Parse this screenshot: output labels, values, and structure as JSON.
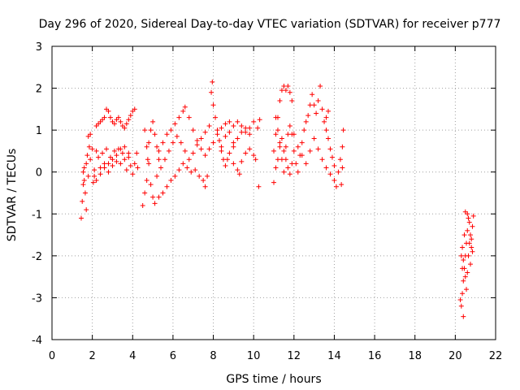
{
  "chart_data": {
    "type": "scatter",
    "title": "Day 296 of 2020, Sidereal Day-to-day VTEC variation (SDTVAR) for receiver p777",
    "xlabel": "GPS time / hours",
    "ylabel": "SDTVAR / TECUs",
    "xlim": [
      0,
      22
    ],
    "ylim": [
      -4,
      3
    ],
    "xticks": [
      "0",
      "2",
      "4",
      "6",
      "8",
      "10",
      "12",
      "14",
      "16",
      "18",
      "20",
      "22"
    ],
    "yticks": [
      "-4",
      "-3",
      "-2",
      "-1",
      "0",
      "1",
      "2",
      "3"
    ],
    "grid": true,
    "marker": "plus",
    "color": "#ff0000",
    "series": [
      {
        "points": [
          [
            1.45,
            -1.1
          ],
          [
            1.5,
            -0.7
          ],
          [
            1.55,
            -0.3
          ],
          [
            1.6,
            0.1
          ],
          [
            1.65,
            -0.5
          ],
          [
            1.7,
            -0.9
          ],
          [
            1.75,
            0.4
          ],
          [
            1.8,
            0.85
          ],
          [
            1.85,
            0.6
          ],
          [
            1.9,
            0.9
          ],
          [
            1.55,
            0.0
          ],
          [
            1.6,
            -0.2
          ],
          [
            1.7,
            0.2
          ],
          [
            1.8,
            -0.1
          ],
          [
            1.9,
            0.3
          ],
          [
            2.0,
            0.55
          ],
          [
            2.05,
            -0.25
          ],
          [
            2.1,
            0.05
          ],
          [
            2.2,
            0.5
          ],
          [
            2.3,
            0.35
          ],
          [
            2.4,
            0.1
          ],
          [
            2.5,
            0.45
          ],
          [
            2.6,
            0.2
          ],
          [
            2.7,
            0.55
          ],
          [
            2.8,
            0.0
          ],
          [
            2.9,
            0.35
          ],
          [
            3.0,
            0.15
          ],
          [
            3.1,
            0.5
          ],
          [
            3.2,
            0.25
          ],
          [
            3.3,
            0.55
          ],
          [
            3.4,
            0.2
          ],
          [
            3.5,
            0.45
          ],
          [
            3.6,
            0.3
          ],
          [
            3.7,
            0.05
          ],
          [
            3.8,
            0.35
          ],
          [
            3.9,
            0.15
          ],
          [
            4.0,
            -0.05
          ],
          [
            4.1,
            0.2
          ],
          [
            4.2,
            0.45
          ],
          [
            4.25,
            0.1
          ],
          [
            2.2,
            1.1
          ],
          [
            2.3,
            1.15
          ],
          [
            2.4,
            1.2
          ],
          [
            2.5,
            1.25
          ],
          [
            2.6,
            1.3
          ],
          [
            2.7,
            1.5
          ],
          [
            2.8,
            1.45
          ],
          [
            2.9,
            1.3
          ],
          [
            3.0,
            1.2
          ],
          [
            3.1,
            1.15
          ],
          [
            3.2,
            1.25
          ],
          [
            3.3,
            1.3
          ],
          [
            3.4,
            1.2
          ],
          [
            3.5,
            1.1
          ],
          [
            3.6,
            1.05
          ],
          [
            3.7,
            1.15
          ],
          [
            3.8,
            1.25
          ],
          [
            3.9,
            1.35
          ],
          [
            4.0,
            1.45
          ],
          [
            4.1,
            1.5
          ],
          [
            2.1,
            -0.1
          ],
          [
            2.2,
            -0.2
          ],
          [
            2.4,
            -0.05
          ],
          [
            2.6,
            0.1
          ],
          [
            2.8,
            0.2
          ],
          [
            3.0,
            0.3
          ],
          [
            3.2,
            0.4
          ],
          [
            3.4,
            0.55
          ],
          [
            3.6,
            0.6
          ],
          [
            3.8,
            0.45
          ],
          [
            4.5,
            -0.8
          ],
          [
            4.6,
            -0.5
          ],
          [
            4.7,
            -0.2
          ],
          [
            4.75,
            0.3
          ],
          [
            4.8,
            0.7
          ],
          [
            4.9,
            1.0
          ],
          [
            5.0,
            1.2
          ],
          [
            5.1,
            0.9
          ],
          [
            5.2,
            0.6
          ],
          [
            5.3,
            0.3
          ],
          [
            4.6,
            1.0
          ],
          [
            4.7,
            0.6
          ],
          [
            4.8,
            0.2
          ],
          [
            4.9,
            -0.3
          ],
          [
            5.0,
            -0.6
          ],
          [
            5.1,
            -0.75
          ],
          [
            5.3,
            -0.6
          ],
          [
            5.5,
            -0.5
          ],
          [
            5.7,
            -0.35
          ],
          [
            5.9,
            -0.2
          ],
          [
            6.1,
            -0.1
          ],
          [
            6.3,
            0.05
          ],
          [
            6.5,
            0.2
          ],
          [
            6.7,
            0.1
          ],
          [
            6.9,
            0.0
          ],
          [
            7.1,
            0.05
          ],
          [
            7.3,
            -0.1
          ],
          [
            7.5,
            -0.2
          ],
          [
            7.6,
            -0.35
          ],
          [
            7.7,
            -0.1
          ],
          [
            5.3,
            0.5
          ],
          [
            5.5,
            0.7
          ],
          [
            5.7,
            0.9
          ],
          [
            5.9,
            1.0
          ],
          [
            6.1,
            1.15
          ],
          [
            6.3,
            1.3
          ],
          [
            6.5,
            1.45
          ],
          [
            6.6,
            1.55
          ],
          [
            6.8,
            1.3
          ],
          [
            7.0,
            1.0
          ],
          [
            7.2,
            0.75
          ],
          [
            7.4,
            0.55
          ],
          [
            7.6,
            0.4
          ],
          [
            7.8,
            0.55
          ],
          [
            8.0,
            0.7
          ],
          [
            8.2,
            0.9
          ],
          [
            8.4,
            1.05
          ],
          [
            8.6,
            1.15
          ],
          [
            8.8,
            0.95
          ],
          [
            9.0,
            0.7
          ],
          [
            5.2,
            -0.1
          ],
          [
            5.4,
            0.1
          ],
          [
            5.6,
            0.3
          ],
          [
            5.8,
            0.5
          ],
          [
            6.0,
            0.7
          ],
          [
            6.2,
            0.85
          ],
          [
            6.4,
            0.7
          ],
          [
            6.6,
            0.5
          ],
          [
            6.8,
            0.3
          ],
          [
            7.0,
            0.45
          ],
          [
            7.2,
            0.65
          ],
          [
            7.4,
            0.8
          ],
          [
            7.6,
            0.95
          ],
          [
            7.8,
            1.1
          ],
          [
            7.9,
            1.9
          ],
          [
            7.95,
            2.15
          ],
          [
            8.0,
            1.6
          ],
          [
            8.1,
            1.3
          ],
          [
            8.2,
            1.0
          ],
          [
            8.3,
            0.75
          ],
          [
            8.4,
            0.5
          ],
          [
            8.5,
            0.3
          ],
          [
            8.6,
            0.15
          ],
          [
            8.7,
            0.3
          ],
          [
            8.8,
            0.45
          ],
          [
            9.0,
            0.6
          ],
          [
            9.2,
            0.8
          ],
          [
            9.4,
            0.95
          ],
          [
            9.6,
            1.05
          ],
          [
            9.8,
            0.9
          ],
          [
            9.0,
            0.2
          ],
          [
            9.2,
            0.05
          ],
          [
            9.4,
            0.25
          ],
          [
            9.6,
            0.45
          ],
          [
            9.8,
            0.55
          ],
          [
            10.0,
            0.4
          ],
          [
            10.1,
            0.3
          ],
          [
            10.2,
            1.05
          ],
          [
            10.3,
            1.25
          ],
          [
            10.25,
            -0.35
          ],
          [
            8.8,
            1.2
          ],
          [
            9.0,
            1.1
          ],
          [
            9.2,
            1.2
          ],
          [
            9.4,
            1.1
          ],
          [
            9.6,
            0.95
          ],
          [
            9.8,
            1.05
          ],
          [
            10.0,
            1.2
          ],
          [
            9.3,
            -0.05
          ],
          [
            8.6,
            0.85
          ],
          [
            8.4,
            0.6
          ],
          [
            11.0,
            0.5
          ],
          [
            11.1,
            0.9
          ],
          [
            11.2,
            1.3
          ],
          [
            11.3,
            1.7
          ],
          [
            11.4,
            1.95
          ],
          [
            11.5,
            2.05
          ],
          [
            11.6,
            1.95
          ],
          [
            11.7,
            2.05
          ],
          [
            11.8,
            1.9
          ],
          [
            11.9,
            1.7
          ],
          [
            11.0,
            -0.25
          ],
          [
            11.1,
            0.1
          ],
          [
            11.2,
            0.3
          ],
          [
            11.3,
            0.6
          ],
          [
            11.4,
            0.8
          ],
          [
            11.5,
            0.5
          ],
          [
            11.6,
            0.3
          ],
          [
            11.7,
            0.1
          ],
          [
            11.8,
            -0.05
          ],
          [
            11.9,
            0.2
          ],
          [
            11.1,
            1.3
          ],
          [
            11.2,
            1.0
          ],
          [
            11.3,
            0.7
          ],
          [
            11.4,
            0.3
          ],
          [
            11.5,
            0.0
          ],
          [
            11.6,
            0.6
          ],
          [
            11.7,
            0.9
          ],
          [
            11.8,
            1.1
          ],
          [
            11.9,
            0.9
          ],
          [
            12.0,
            0.5
          ],
          [
            12.1,
            0.2
          ],
          [
            12.2,
            0.0
          ],
          [
            12.3,
            0.4
          ],
          [
            12.4,
            0.7
          ],
          [
            12.5,
            1.0
          ],
          [
            12.6,
            1.2
          ],
          [
            12.7,
            1.35
          ],
          [
            12.8,
            1.6
          ],
          [
            12.9,
            1.85
          ],
          [
            13.0,
            1.6
          ],
          [
            13.1,
            1.4
          ],
          [
            13.2,
            1.7
          ],
          [
            13.3,
            2.05
          ],
          [
            13.4,
            1.5
          ],
          [
            13.5,
            1.2
          ],
          [
            13.6,
            1.0
          ],
          [
            13.7,
            0.8
          ],
          [
            13.8,
            0.55
          ],
          [
            13.9,
            0.35
          ],
          [
            14.0,
            0.15
          ],
          [
            12.2,
            0.6
          ],
          [
            12.4,
            0.4
          ],
          [
            12.6,
            0.2
          ],
          [
            12.8,
            0.5
          ],
          [
            13.0,
            0.8
          ],
          [
            13.2,
            0.55
          ],
          [
            13.4,
            0.3
          ],
          [
            13.6,
            0.1
          ],
          [
            13.8,
            -0.05
          ],
          [
            14.0,
            -0.2
          ],
          [
            14.1,
            -0.35
          ],
          [
            14.2,
            0.0
          ],
          [
            14.3,
            0.3
          ],
          [
            14.4,
            0.6
          ],
          [
            14.45,
            1.0
          ],
          [
            14.4,
            0.1
          ],
          [
            14.35,
            -0.3
          ],
          [
            13.7,
            1.45
          ],
          [
            13.6,
            1.3
          ],
          [
            12.0,
            0.9
          ],
          [
            20.25,
            -3.05
          ],
          [
            20.3,
            -3.2
          ],
          [
            20.35,
            -2.9
          ],
          [
            20.4,
            -2.6
          ],
          [
            20.45,
            -2.3
          ],
          [
            20.5,
            -2.0
          ],
          [
            20.55,
            -1.7
          ],
          [
            20.6,
            -1.4
          ],
          [
            20.65,
            -1.1
          ],
          [
            20.4,
            -3.45
          ],
          [
            20.3,
            -2.0
          ],
          [
            20.35,
            -1.8
          ],
          [
            20.4,
            -2.1
          ],
          [
            20.5,
            -2.5
          ],
          [
            20.55,
            -2.8
          ],
          [
            20.6,
            -2.4
          ],
          [
            20.65,
            -2.0
          ],
          [
            20.7,
            -1.7
          ],
          [
            20.75,
            -1.5
          ],
          [
            20.8,
            -1.8
          ],
          [
            20.85,
            -1.3
          ],
          [
            20.9,
            -1.05
          ],
          [
            20.7,
            -1.2
          ],
          [
            20.6,
            -1.0
          ],
          [
            20.5,
            -0.95
          ],
          [
            20.45,
            -1.5
          ],
          [
            20.35,
            -2.3
          ],
          [
            20.75,
            -2.2
          ],
          [
            20.8,
            -1.6
          ],
          [
            20.85,
            -1.9
          ]
        ]
      }
    ]
  }
}
